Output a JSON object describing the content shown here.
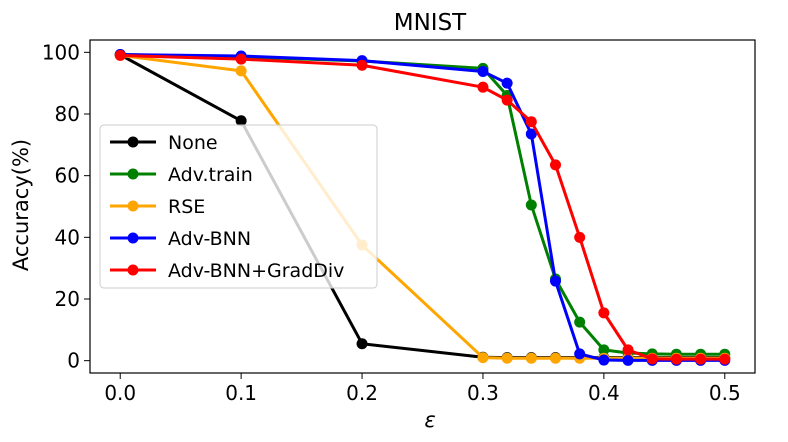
{
  "chart_data": {
    "type": "line",
    "title": "MNIST",
    "xlabel": "ε",
    "ylabel": "Accuracy(%)",
    "xlim": [
      -0.025,
      0.525
    ],
    "ylim": [
      -4,
      104
    ],
    "xticks": [
      0.0,
      0.1,
      0.2,
      0.3,
      0.4,
      0.5
    ],
    "xtick_labels": [
      "0.0",
      "0.1",
      "0.2",
      "0.3",
      "0.4",
      "0.5"
    ],
    "yticks": [
      0,
      20,
      40,
      60,
      80,
      100
    ],
    "ytick_labels": [
      "0",
      "20",
      "40",
      "60",
      "80",
      "100"
    ],
    "legend_position": "center-left",
    "series": [
      {
        "name": "None",
        "color": "#000000",
        "x": [
          0.0,
          0.1,
          0.2,
          0.3,
          0.32,
          0.34,
          0.36,
          0.38,
          0.4,
          0.42,
          0.44,
          0.46,
          0.48,
          0.5
        ],
        "y": [
          99.2,
          77.8,
          5.5,
          1.1,
          1.0,
          1.0,
          1.0,
          1.0,
          1.0,
          1.0,
          1.0,
          1.0,
          1.0,
          1.0
        ]
      },
      {
        "name": "Adv.train",
        "color": "#008000",
        "x": [
          0.0,
          0.1,
          0.2,
          0.3,
          0.32,
          0.34,
          0.36,
          0.38,
          0.4,
          0.42,
          0.44,
          0.46,
          0.48,
          0.5
        ],
        "y": [
          99.3,
          98.5,
          97.2,
          94.8,
          86.0,
          50.5,
          26.5,
          12.5,
          3.5,
          2.5,
          2.2,
          2.1,
          2.1,
          2.1
        ]
      },
      {
        "name": "RSE",
        "color": "#FFA500",
        "x": [
          0.0,
          0.1,
          0.2,
          0.3,
          0.32,
          0.34,
          0.36,
          0.38,
          0.4,
          0.42,
          0.44,
          0.46,
          0.48,
          0.5
        ],
        "y": [
          99.0,
          94.0,
          37.5,
          1.0,
          0.8,
          0.8,
          0.8,
          0.8,
          0.8,
          0.8,
          0.8,
          0.8,
          0.8,
          0.8
        ]
      },
      {
        "name": "Adv-BNN",
        "color": "#0000FF",
        "x": [
          0.0,
          0.1,
          0.2,
          0.3,
          0.32,
          0.34,
          0.36,
          0.38,
          0.4,
          0.42,
          0.44,
          0.46,
          0.48,
          0.5
        ],
        "y": [
          99.3,
          98.8,
          97.3,
          93.8,
          90.0,
          73.5,
          25.8,
          2.2,
          0.2,
          0.1,
          0.1,
          0.1,
          0.1,
          0.1
        ]
      },
      {
        "name": "Adv-BNN+GradDiv",
        "color": "#FF0000",
        "x": [
          0.0,
          0.1,
          0.2,
          0.3,
          0.32,
          0.34,
          0.36,
          0.38,
          0.4,
          0.42,
          0.44,
          0.46,
          0.48,
          0.5
        ],
        "y": [
          99.0,
          97.8,
          95.8,
          88.7,
          84.5,
          77.5,
          63.5,
          40.0,
          15.5,
          3.5,
          0.6,
          0.5,
          0.5,
          0.5
        ]
      }
    ]
  }
}
